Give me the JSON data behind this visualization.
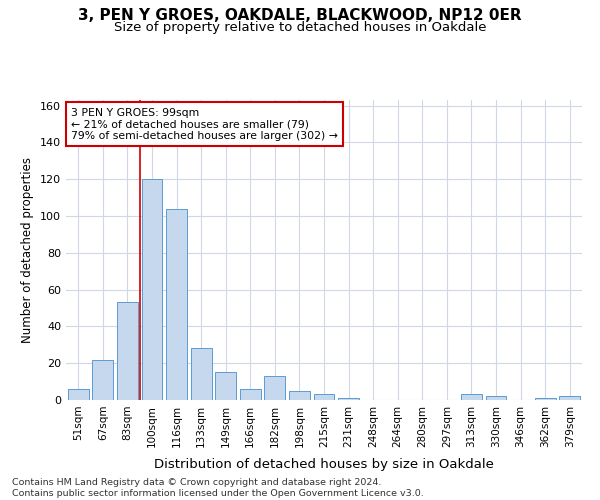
{
  "title1": "3, PEN Y GROES, OAKDALE, BLACKWOOD, NP12 0ER",
  "title2": "Size of property relative to detached houses in Oakdale",
  "xlabel": "Distribution of detached houses by size in Oakdale",
  "ylabel": "Number of detached properties",
  "categories": [
    "51sqm",
    "67sqm",
    "83sqm",
    "100sqm",
    "116sqm",
    "133sqm",
    "149sqm",
    "166sqm",
    "182sqm",
    "198sqm",
    "215sqm",
    "231sqm",
    "248sqm",
    "264sqm",
    "280sqm",
    "297sqm",
    "313sqm",
    "330sqm",
    "346sqm",
    "362sqm",
    "379sqm"
  ],
  "values": [
    6,
    22,
    53,
    120,
    104,
    28,
    15,
    6,
    13,
    5,
    3,
    1,
    0,
    0,
    0,
    0,
    3,
    2,
    0,
    1,
    2
  ],
  "bar_color": "#c5d8ed",
  "bar_edge_color": "#5b9bd5",
  "grid_color": "#d0d8e8",
  "background_color": "#ffffff",
  "annotation_line1": "3 PEN Y GROES: 99sqm",
  "annotation_line2": "← 21% of detached houses are smaller (79)",
  "annotation_line3": "79% of semi-detached houses are larger (302) →",
  "annotation_box_facecolor": "#ffffff",
  "annotation_box_edgecolor": "#cc0000",
  "marker_line_index": 3,
  "marker_line_color": "#cc0000",
  "ylim": [
    0,
    163
  ],
  "yticks": [
    0,
    20,
    40,
    60,
    80,
    100,
    120,
    140,
    160
  ],
  "footer_line1": "Contains HM Land Registry data © Crown copyright and database right 2024.",
  "footer_line2": "Contains public sector information licensed under the Open Government Licence v3.0."
}
